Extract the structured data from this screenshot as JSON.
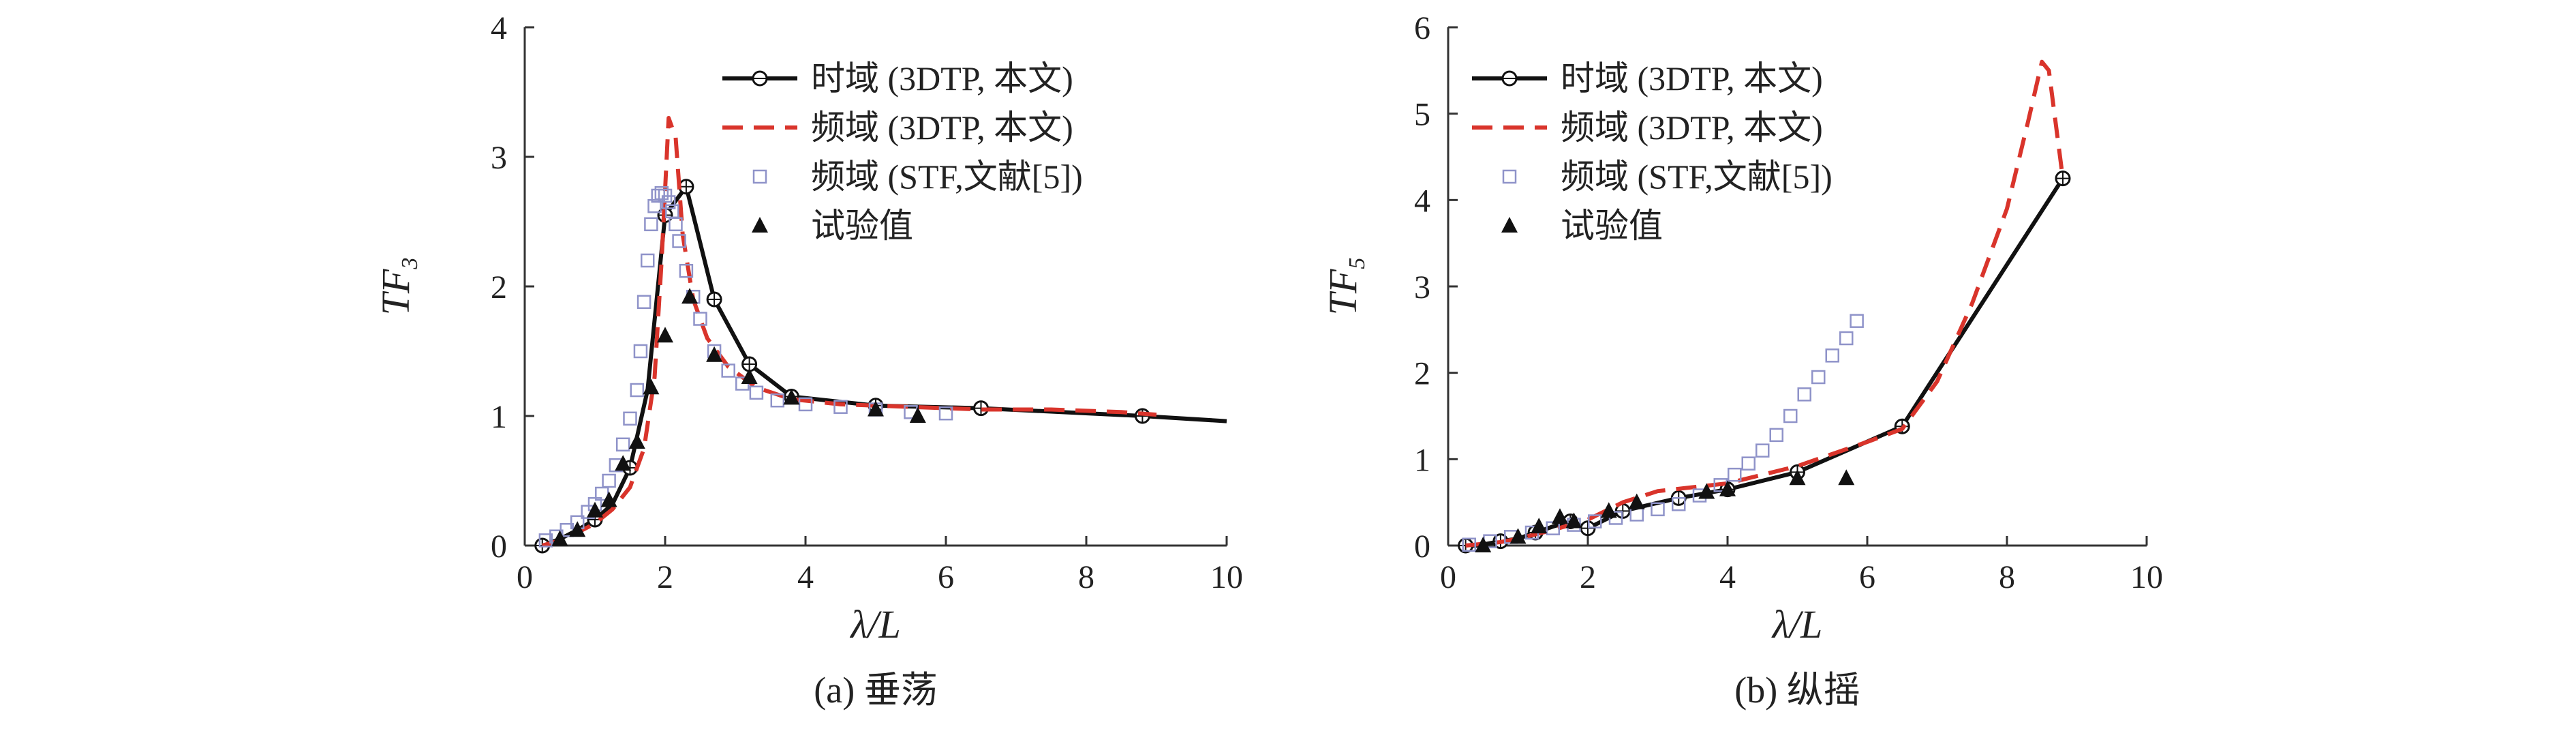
{
  "colors": {
    "time_line": "#111111",
    "freq_line": "#d9342b",
    "stf_marker": "#8f93c9",
    "exp_marker": "#111111"
  },
  "chart_data": [
    {
      "type": "line",
      "title": "",
      "caption": "(a) 垂荡",
      "xlabel": "λ/L",
      "ylabel_main": "TF",
      "ylabel_sub": "3",
      "xlim": [
        0,
        10
      ],
      "ylim": [
        0,
        4
      ],
      "xticks": [
        0,
        2,
        4,
        6,
        8,
        10
      ],
      "yticks": [
        0,
        1,
        2,
        3,
        4
      ],
      "xtick_labels": [
        "0",
        "2",
        "4",
        "6",
        "8",
        "10"
      ],
      "ytick_labels": [
        "0",
        "1",
        "2",
        "3",
        "4"
      ],
      "legend_position": "top-right",
      "series": [
        {
          "name": "时域 (3DTP, 本文)",
          "style": "solid-circle-marker",
          "x": [
            0.25,
            0.5,
            0.75,
            1.0,
            1.25,
            1.5,
            1.75,
            2.0,
            2.3,
            2.7,
            3.2,
            3.8,
            5.0,
            6.5,
            8.8,
            10.0
          ],
          "y": [
            0.0,
            0.05,
            0.12,
            0.2,
            0.32,
            0.6,
            1.2,
            2.55,
            2.77,
            1.9,
            1.4,
            1.15,
            1.08,
            1.06,
            1.0,
            0.96
          ]
        },
        {
          "name": "频域 (3DTP, 本文)",
          "style": "dashed",
          "x": [
            0.25,
            0.5,
            0.75,
            1.0,
            1.25,
            1.5,
            1.7,
            1.85,
            1.95,
            2.05,
            2.15,
            2.25,
            2.4,
            2.6,
            2.9,
            3.3,
            3.8,
            4.5,
            5.5,
            6.5,
            7.5,
            8.5,
            9.0
          ],
          "y": [
            0.0,
            0.04,
            0.1,
            0.17,
            0.28,
            0.45,
            0.75,
            1.3,
            2.2,
            3.3,
            3.15,
            2.4,
            1.9,
            1.6,
            1.38,
            1.22,
            1.13,
            1.09,
            1.07,
            1.05,
            1.05,
            1.03,
            1.01
          ]
        },
        {
          "name": "频域 (STF,文献[5])",
          "style": "square-markers",
          "x": [
            0.3,
            0.45,
            0.6,
            0.75,
            0.9,
            1.0,
            1.1,
            1.2,
            1.3,
            1.4,
            1.5,
            1.6,
            1.65,
            1.7,
            1.75,
            1.8,
            1.85,
            1.9,
            1.95,
            2.0,
            2.05,
            2.1,
            2.15,
            2.2,
            2.3,
            2.4,
            2.5,
            2.7,
            2.9,
            3.1,
            3.3,
            3.6,
            4.0,
            4.5,
            5.0,
            5.5,
            6.0
          ],
          "y": [
            0.04,
            0.07,
            0.12,
            0.18,
            0.26,
            0.32,
            0.4,
            0.5,
            0.62,
            0.78,
            0.98,
            1.2,
            1.5,
            1.88,
            2.2,
            2.48,
            2.62,
            2.7,
            2.72,
            2.7,
            2.65,
            2.58,
            2.48,
            2.35,
            2.12,
            1.92,
            1.75,
            1.5,
            1.35,
            1.25,
            1.18,
            1.12,
            1.09,
            1.07,
            1.05,
            1.03,
            1.02
          ]
        },
        {
          "name": "试验值",
          "style": "triangle-markers",
          "x": [
            0.5,
            0.75,
            1.0,
            1.2,
            1.4,
            1.6,
            1.8,
            2.0,
            2.35,
            2.7,
            3.2,
            3.8,
            5.0,
            5.6
          ],
          "y": [
            0.05,
            0.12,
            0.27,
            0.35,
            0.63,
            0.8,
            1.22,
            1.62,
            1.92,
            1.47,
            1.3,
            1.14,
            1.05,
            1.0
          ]
        }
      ]
    },
    {
      "type": "line",
      "title": "",
      "caption": "(b) 纵摇",
      "xlabel": "λ/L",
      "ylabel_main": "TF",
      "ylabel_sub": "5",
      "xlim": [
        0,
        10
      ],
      "ylim": [
        0,
        6
      ],
      "xticks": [
        0,
        2,
        4,
        6,
        8,
        10
      ],
      "yticks": [
        0,
        1,
        2,
        3,
        4,
        5,
        6
      ],
      "xtick_labels": [
        "0",
        "2",
        "4",
        "6",
        "8",
        "10"
      ],
      "ytick_labels": [
        "0",
        "1",
        "2",
        "3",
        "4",
        "5",
        "6"
      ],
      "legend_position": "top-left",
      "series": [
        {
          "name": "时域 (3DTP, 本文)",
          "style": "solid-circle-marker",
          "x": [
            0.25,
            0.4,
            0.55,
            0.75,
            1.0,
            1.25,
            1.5,
            1.75,
            2.0,
            2.5,
            3.3,
            4.0,
            5.0,
            6.5,
            8.8
          ],
          "y": [
            0.0,
            0.0,
            0.02,
            0.05,
            0.08,
            0.15,
            0.22,
            0.28,
            0.2,
            0.4,
            0.55,
            0.65,
            0.85,
            1.38,
            4.25
          ]
        },
        {
          "name": "频域 (3DTP, 本文)",
          "style": "dashed",
          "x": [
            0.25,
            0.5,
            0.75,
            1.0,
            1.5,
            2.0,
            2.5,
            3.0,
            4.0,
            5.0,
            6.0,
            6.5,
            7.0,
            7.5,
            8.0,
            8.3,
            8.5,
            8.6,
            8.8
          ],
          "y": [
            0.0,
            0.02,
            0.04,
            0.08,
            0.18,
            0.3,
            0.5,
            0.63,
            0.72,
            0.92,
            1.2,
            1.35,
            1.9,
            2.8,
            3.9,
            4.9,
            5.6,
            5.5,
            4.25
          ]
        },
        {
          "name": "频域 (STF,文献[5])",
          "style": "square-markers",
          "x": [
            0.3,
            0.6,
            0.9,
            1.2,
            1.5,
            1.8,
            2.1,
            2.4,
            2.7,
            3.0,
            3.3,
            3.6,
            3.9,
            4.1,
            4.3,
            4.5,
            4.7,
            4.9,
            5.1,
            5.3,
            5.5,
            5.7,
            5.85
          ],
          "y": [
            0.01,
            0.05,
            0.1,
            0.15,
            0.2,
            0.24,
            0.28,
            0.32,
            0.36,
            0.42,
            0.48,
            0.58,
            0.7,
            0.82,
            0.95,
            1.1,
            1.28,
            1.5,
            1.75,
            1.95,
            2.2,
            2.4,
            2.6
          ]
        },
        {
          "name": "试验值",
          "style": "triangle-markers",
          "x": [
            0.5,
            1.0,
            1.3,
            1.6,
            1.8,
            2.3,
            2.7,
            3.7,
            4.0,
            5.0,
            5.7
          ],
          "y": [
            0.0,
            0.1,
            0.22,
            0.33,
            0.28,
            0.4,
            0.5,
            0.62,
            0.65,
            0.78,
            0.78
          ]
        }
      ]
    }
  ]
}
